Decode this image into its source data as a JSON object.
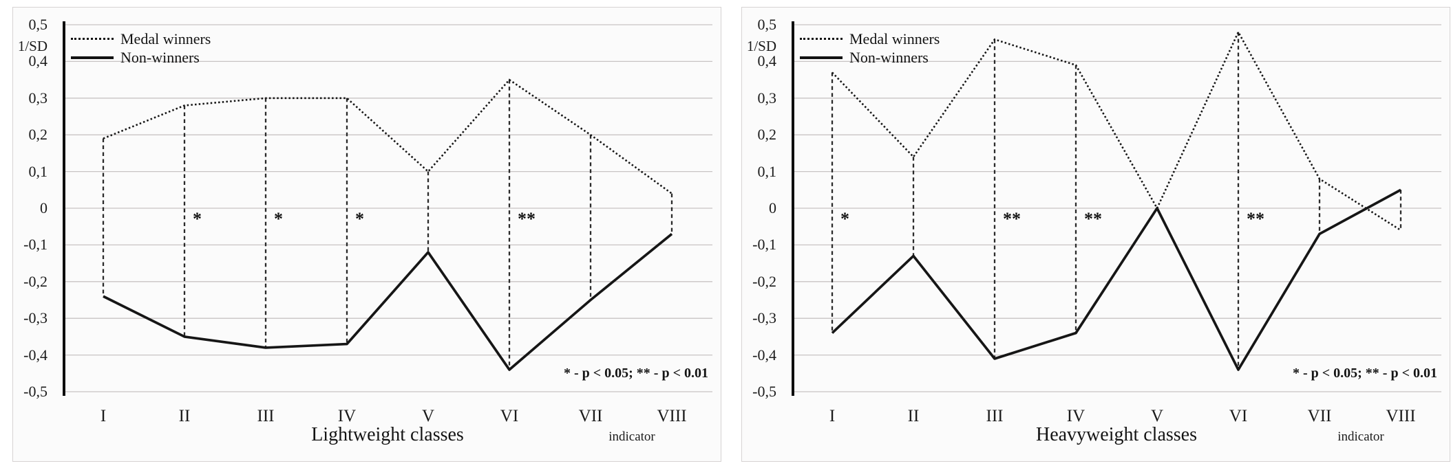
{
  "y_axis_unit": "1/SD",
  "significance_note": "* - p < 0.05; ** - p < 0.01",
  "chart_data": [
    {
      "type": "line",
      "title": "Lightweight classes",
      "ylabel": "1/SD",
      "ylim": [
        -0.5,
        0.5
      ],
      "ytick_step": 0.1,
      "ytick_labels": [
        "0,5",
        "0,4",
        "0,3",
        "0,2",
        "0,1",
        "0",
        "-0,1",
        "-0,2",
        "-0,3",
        "-0,4",
        "-0,5"
      ],
      "grid": true,
      "legend_position": "top-left",
      "categories": [
        "I",
        "II",
        "III",
        "IV",
        "V",
        "VI",
        "VII",
        "VIII"
      ],
      "x_axis_note": "indicator",
      "series": [
        {
          "name": "Medal winners",
          "line": "dotted",
          "values": [
            0.19,
            0.28,
            0.3,
            0.3,
            0.1,
            0.35,
            0.2,
            0.04
          ]
        },
        {
          "name": "Non-winners",
          "line": "solid",
          "values": [
            -0.24,
            -0.35,
            -0.38,
            -0.37,
            -0.12,
            -0.44,
            -0.25,
            -0.07
          ]
        }
      ],
      "significance": [
        "",
        "*",
        "*",
        "*",
        "",
        "**",
        "",
        ""
      ],
      "connectors": [
        true,
        true,
        true,
        true,
        true,
        true,
        true,
        true
      ],
      "significance_note": "* - p < 0.05; ** - p < 0.01"
    },
    {
      "type": "line",
      "title": "Heavyweight classes",
      "ylabel": "1/SD",
      "ylim": [
        -0.5,
        0.5
      ],
      "ytick_step": 0.1,
      "ytick_labels": [
        "0,5",
        "0,4",
        "0,3",
        "0,2",
        "0,1",
        "0",
        "-0,1",
        "-0,2",
        "-0,3",
        "-0,4",
        "-0,5"
      ],
      "grid": true,
      "legend_position": "top-left",
      "categories": [
        "I",
        "II",
        "III",
        "IV",
        "V",
        "VI",
        "VII",
        "VIII"
      ],
      "x_axis_note": "indicator",
      "series": [
        {
          "name": "Medal winners",
          "line": "dotted",
          "values": [
            0.37,
            0.14,
            0.46,
            0.39,
            0.0,
            0.48,
            0.08,
            -0.06
          ]
        },
        {
          "name": "Non-winners",
          "line": "solid",
          "values": [
            -0.34,
            -0.13,
            -0.41,
            -0.34,
            0.0,
            -0.44,
            -0.07,
            0.05
          ]
        }
      ],
      "significance": [
        "*",
        "",
        "**",
        "**",
        "",
        "**",
        "",
        ""
      ],
      "connectors": [
        true,
        true,
        true,
        true,
        false,
        true,
        true,
        true
      ],
      "significance_note": "* - p < 0.05; ** - p < 0.01"
    }
  ],
  "style": {
    "line_color": "#161616",
    "grid_color": "#c8c3c3",
    "panel_background": "#fbfbfb",
    "panel_border": "#d6d3d3"
  }
}
